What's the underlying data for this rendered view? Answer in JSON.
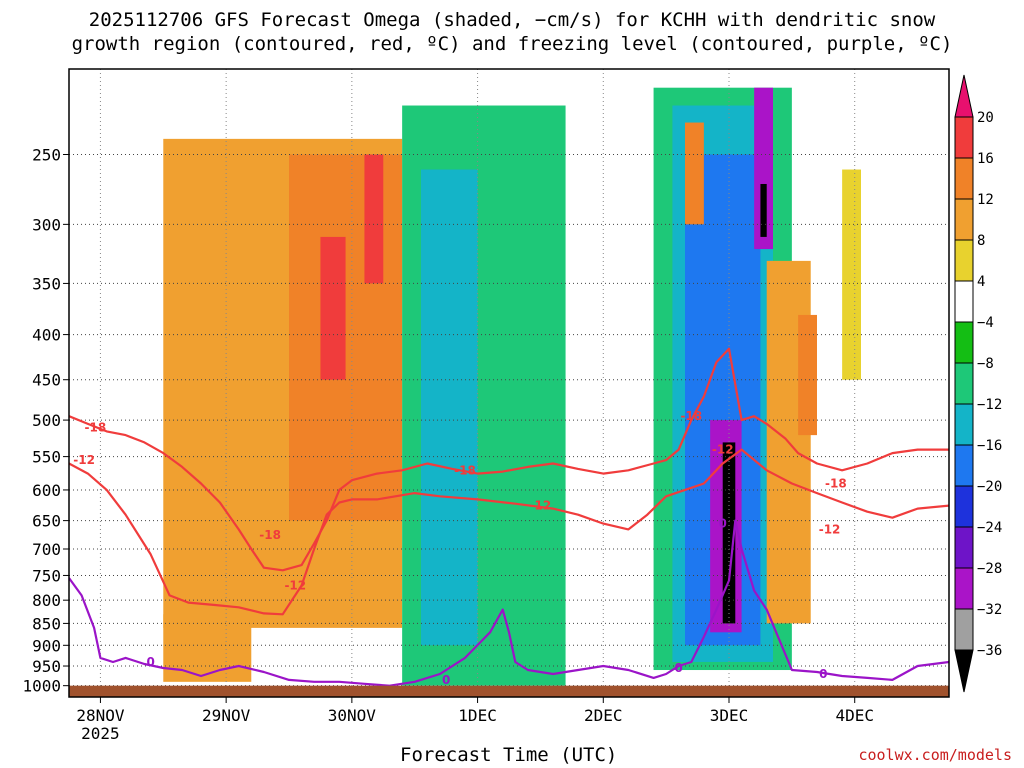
{
  "title_line1": "2025112706 GFS Forecast Omega (shaded, −cm/s) for KCHH with dendritic snow",
  "title_line2": "growth region (contoured, red, ºC) and freezing level (contoured, purple, ºC)",
  "credit": "coolwx.com/models",
  "chart_data": {
    "type": "heatmap",
    "title": "2025112706 GFS Forecast Omega (shaded, −cm/s) for KCHH with dendritic snow growth region (contoured, red, ºC) and freezing level (contoured, purple, ºC)",
    "xlabel": "Forecast Time (UTC)",
    "ylabel": "",
    "x_ticks": [
      {
        "label": "28NOV",
        "sublabel": "2025",
        "day": 1.0
      },
      {
        "label": "29NOV",
        "day": 2.0
      },
      {
        "label": "30NOV",
        "day": 3.0
      },
      {
        "label": "1DEC",
        "day": 4.0
      },
      {
        "label": "2DEC",
        "day": 5.0
      },
      {
        "label": "3DEC",
        "day": 6.0
      },
      {
        "label": "4DEC",
        "day": 7.0
      }
    ],
    "xlim": [
      0.75,
      7.75
    ],
    "y_ticks": [
      250,
      300,
      350,
      400,
      450,
      500,
      550,
      600,
      650,
      700,
      750,
      800,
      850,
      900,
      950,
      1000
    ],
    "ylim": [
      200,
      1030
    ],
    "y_scale": "log",
    "grid": true,
    "colorbar": {
      "labels": [
        "20",
        "16",
        "12",
        "8",
        "4",
        "−4",
        "−8",
        "−12",
        "−16",
        "−20",
        "−24",
        "−28",
        "−32",
        "−36"
      ],
      "colors": [
        "#e8106e",
        "#f03c3c",
        "#f08228",
        "#f0a030",
        "#e8d22e",
        "#ffffff",
        "#14be14",
        "#1ec878",
        "#14b4c8",
        "#1e78f0",
        "#1e32dc",
        "#6e14c8",
        "#aa14c8",
        "#a0a0a0",
        "#000000"
      ]
    },
    "omega_features": [
      {
        "x": [
          1.5,
          3.4
        ],
        "p": [
          240,
          860
        ],
        "value": 8
      },
      {
        "x": [
          2.5,
          3.4
        ],
        "p": [
          250,
          650
        ],
        "value": 14
      },
      {
        "x": [
          2.75,
          2.95
        ],
        "p": [
          310,
          450
        ],
        "value": 18
      },
      {
        "x": [
          3.1,
          3.25
        ],
        "p": [
          250,
          350
        ],
        "value": 16
      },
      {
        "x": [
          1.5,
          2.2
        ],
        "p": [
          830,
          990
        ],
        "value": 8
      },
      {
        "x": [
          3.4,
          4.7
        ],
        "p": [
          220,
          1000
        ],
        "value": -8
      },
      {
        "x": [
          3.55,
          4.0
        ],
        "p": [
          260,
          900
        ],
        "value": -12
      },
      {
        "x": [
          5.4,
          6.5
        ],
        "p": [
          210,
          960
        ],
        "value": -8
      },
      {
        "x": [
          5.55,
          6.35
        ],
        "p": [
          220,
          940
        ],
        "value": -12
      },
      {
        "x": [
          5.65,
          6.25
        ],
        "p": [
          250,
          900
        ],
        "value": -16
      },
      {
        "x": [
          5.85,
          6.1
        ],
        "p": [
          500,
          870
        ],
        "value": -28
      },
      {
        "x": [
          5.95,
          6.05
        ],
        "p": [
          530,
          850
        ],
        "value": -36
      },
      {
        "x": [
          6.2,
          6.35
        ],
        "p": [
          210,
          320
        ],
        "value": -28
      },
      {
        "x": [
          6.25,
          6.3
        ],
        "p": [
          270,
          310
        ],
        "value": -36
      },
      {
        "x": [
          5.65,
          5.8
        ],
        "p": [
          230,
          300
        ],
        "value": 12
      },
      {
        "x": [
          6.3,
          6.65
        ],
        "p": [
          330,
          850
        ],
        "value": 8
      },
      {
        "x": [
          6.55,
          6.7
        ],
        "p": [
          380,
          520
        ],
        "value": 12
      },
      {
        "x": [
          6.9,
          7.05
        ],
        "p": [
          260,
          450
        ],
        "value": 4
      }
    ],
    "series": [
      {
        "name": "-12",
        "color": "#f03c3c",
        "x": [
          0.75,
          0.9,
          1.05,
          1.2,
          1.4,
          1.55,
          1.7,
          1.9,
          2.1,
          2.3,
          2.45,
          2.6,
          2.7,
          2.8,
          2.9,
          3.0,
          3.2,
          3.5,
          3.7,
          4.0,
          4.3,
          4.6,
          4.8,
          5.0,
          5.2,
          5.35,
          5.5,
          5.65,
          5.8,
          5.95,
          6.1,
          6.3,
          6.5,
          6.7,
          6.9,
          7.1,
          7.3,
          7.5,
          7.75
        ],
        "p": [
          560,
          575,
          600,
          640,
          710,
          790,
          805,
          810,
          815,
          828,
          830,
          770,
          700,
          640,
          620,
          615,
          615,
          605,
          610,
          615,
          622,
          630,
          640,
          655,
          665,
          640,
          610,
          600,
          590,
          560,
          540,
          570,
          590,
          605,
          620,
          635,
          645,
          630,
          625
        ]
      },
      {
        "name": "-18",
        "color": "#f03c3c",
        "x": [
          0.75,
          0.9,
          1.05,
          1.2,
          1.35,
          1.5,
          1.65,
          1.8,
          1.95,
          2.1,
          2.2,
          2.3,
          2.45,
          2.6,
          2.7,
          2.8,
          2.9,
          3.0,
          3.2,
          3.4,
          3.6,
          3.8,
          4.0,
          4.2,
          4.4,
          4.6,
          4.8,
          5.0,
          5.2,
          5.4,
          5.5,
          5.6,
          5.7,
          5.8,
          5.9,
          6.0,
          6.1,
          6.2,
          6.3,
          6.45,
          6.55,
          6.7,
          6.9,
          7.1,
          7.3,
          7.5,
          7.75
        ],
        "p": [
          495,
          505,
          515,
          520,
          530,
          545,
          565,
          590,
          620,
          665,
          700,
          735,
          740,
          730,
          690,
          650,
          600,
          585,
          575,
          570,
          560,
          568,
          575,
          572,
          565,
          560,
          568,
          575,
          570,
          560,
          555,
          540,
          500,
          470,
          430,
          415,
          500,
          495,
          505,
          525,
          545,
          560,
          570,
          560,
          545,
          540,
          540
        ]
      },
      {
        "name": "0",
        "color": "#9b14c8",
        "x": [
          0.75,
          0.85,
          0.95,
          1.0,
          1.1,
          1.2,
          1.35,
          1.5,
          1.65,
          1.8,
          1.95,
          2.1,
          2.3,
          2.5,
          2.7,
          2.9,
          3.1,
          3.3,
          3.5,
          3.7,
          3.9,
          4.1,
          4.2,
          4.25,
          4.3,
          4.4,
          4.6,
          4.8,
          5.0,
          5.2,
          5.4,
          5.5,
          5.6,
          5.7,
          5.8,
          5.9,
          6.0,
          6.05,
          6.1,
          6.2,
          6.3,
          6.5,
          6.7,
          6.9,
          7.1,
          7.3,
          7.5,
          7.75
        ],
        "p": [
          755,
          790,
          860,
          930,
          940,
          930,
          945,
          955,
          960,
          975,
          960,
          950,
          965,
          985,
          990,
          990,
          995,
          1000,
          990,
          970,
          930,
          870,
          820,
          870,
          940,
          960,
          970,
          960,
          950,
          960,
          980,
          970,
          950,
          940,
          880,
          820,
          760,
          650,
          700,
          780,
          820,
          960,
          965,
          975,
          980,
          985,
          950,
          940
        ]
      }
    ],
    "contour_labels": [
      {
        "text": "-18",
        "color": "#f03c3c",
        "day": 0.96,
        "p": 510
      },
      {
        "text": "-12",
        "color": "#f03c3c",
        "day": 0.87,
        "p": 555
      },
      {
        "text": "-18",
        "color": "#f03c3c",
        "day": 2.35,
        "p": 675
      },
      {
        "text": "-12",
        "color": "#f03c3c",
        "day": 2.55,
        "p": 770
      },
      {
        "text": "-18",
        "color": "#f03c3c",
        "day": 3.9,
        "p": 570
      },
      {
        "text": "-12",
        "color": "#f03c3c",
        "day": 4.5,
        "p": 625
      },
      {
        "text": "-18",
        "color": "#f03c3c",
        "day": 5.7,
        "p": 495
      },
      {
        "text": "-12",
        "color": "#f03c3c",
        "day": 5.95,
        "p": 540
      },
      {
        "text": "-18",
        "color": "#f03c3c",
        "day": 6.85,
        "p": 590
      },
      {
        "text": "-12",
        "color": "#f03c3c",
        "day": 6.8,
        "p": 665
      },
      {
        "text": "0",
        "color": "#9b14c8",
        "day": 1.4,
        "p": 940
      },
      {
        "text": "0",
        "color": "#9b14c8",
        "day": 3.75,
        "p": 985
      },
      {
        "text": "0",
        "color": "#9b14c8",
        "day": 5.95,
        "p": 655
      },
      {
        "text": "0",
        "color": "#9b14c8",
        "day": 5.6,
        "p": 955
      },
      {
        "text": "0",
        "color": "#9b14c8",
        "day": 6.75,
        "p": 970
      }
    ],
    "terrain_color": "#a0522d"
  }
}
